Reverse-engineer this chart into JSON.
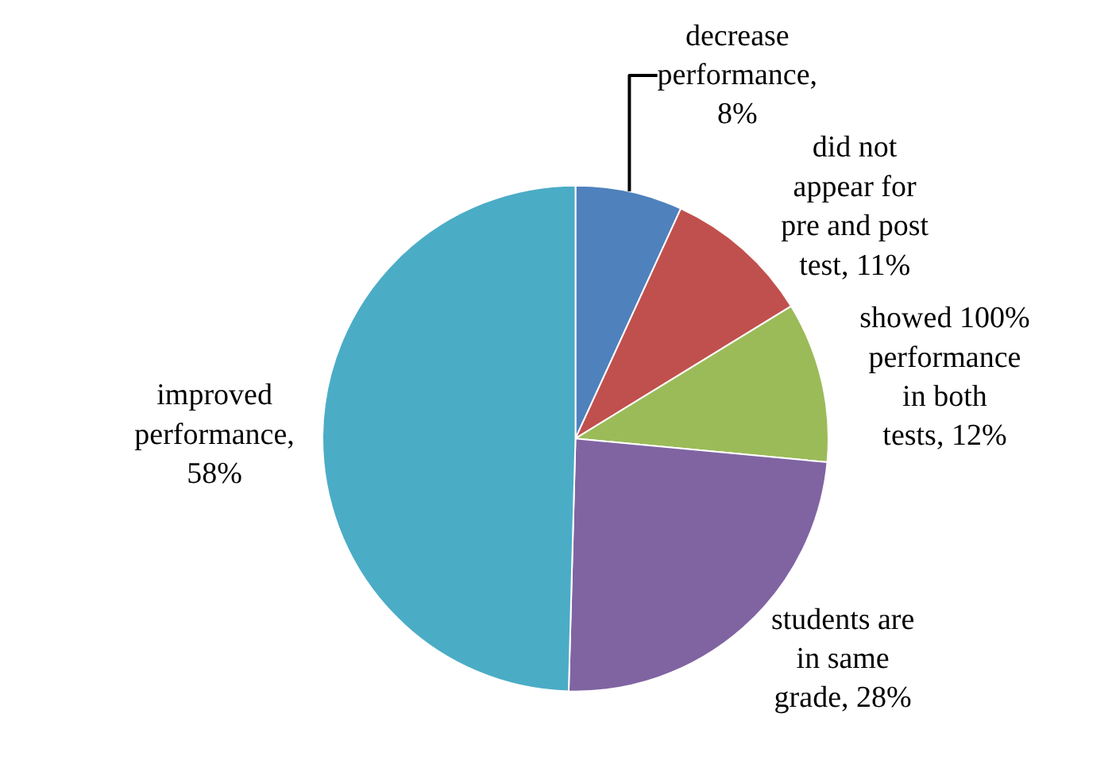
{
  "chart_data": {
    "type": "pie",
    "categories": [
      "decrease performance, 8%",
      "did not appear for pre and post test, 11%",
      "showed 100% performance in both tests, 12%",
      "students are in same grade, 28%",
      "improved performance, 58%"
    ],
    "values": [
      8,
      11,
      12,
      28,
      58
    ],
    "colors": [
      "#4f81bd",
      "#c0504d",
      "#9bbb59",
      "#8064a2",
      "#4bacc6"
    ],
    "legend": false
  }
}
